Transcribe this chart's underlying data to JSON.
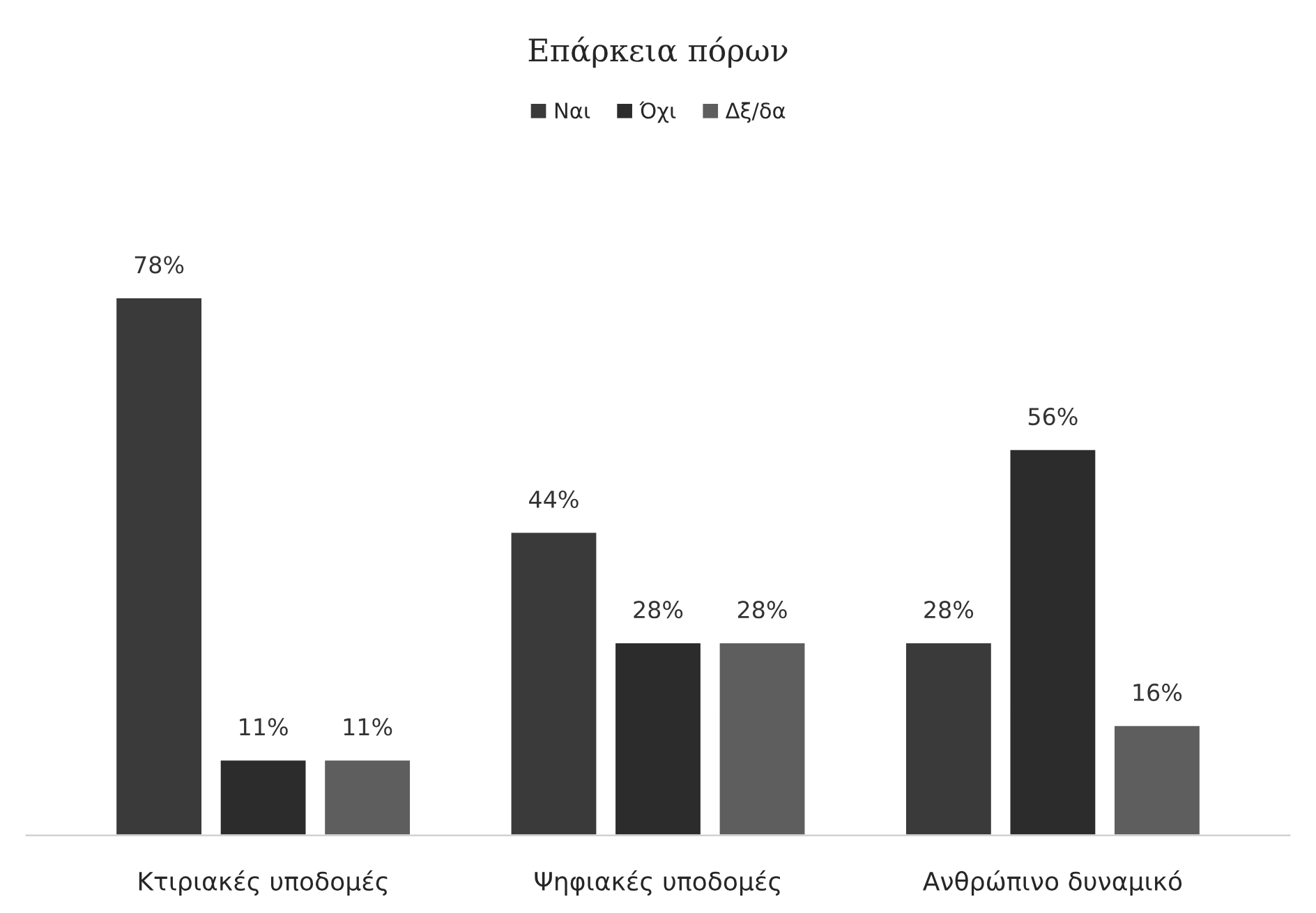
{
  "chart_data": {
    "type": "bar",
    "title": "Επάρκεια πόρων",
    "categories": [
      "Κτιριακές υποδομές",
      "Ψηφιακές υποδομές",
      "Ανθρώπινο δυναμικό"
    ],
    "series": [
      {
        "name": "Ναι",
        "color": "#3a3a3a",
        "values": [
          78,
          44,
          28
        ],
        "value_labels": [
          "78%",
          "44%",
          "28%"
        ]
      },
      {
        "name": "Όχι",
        "color": "#2c2c2c",
        "values": [
          11,
          28,
          56
        ],
        "value_labels": [
          "11%",
          "28%",
          "56%"
        ]
      },
      {
        "name": "Δξ/δα",
        "color": "#5e5e5e",
        "values": [
          11,
          28,
          16
        ],
        "value_labels": [
          "11%",
          "28%",
          "16%"
        ]
      }
    ],
    "legend": "top",
    "grid": false
  }
}
